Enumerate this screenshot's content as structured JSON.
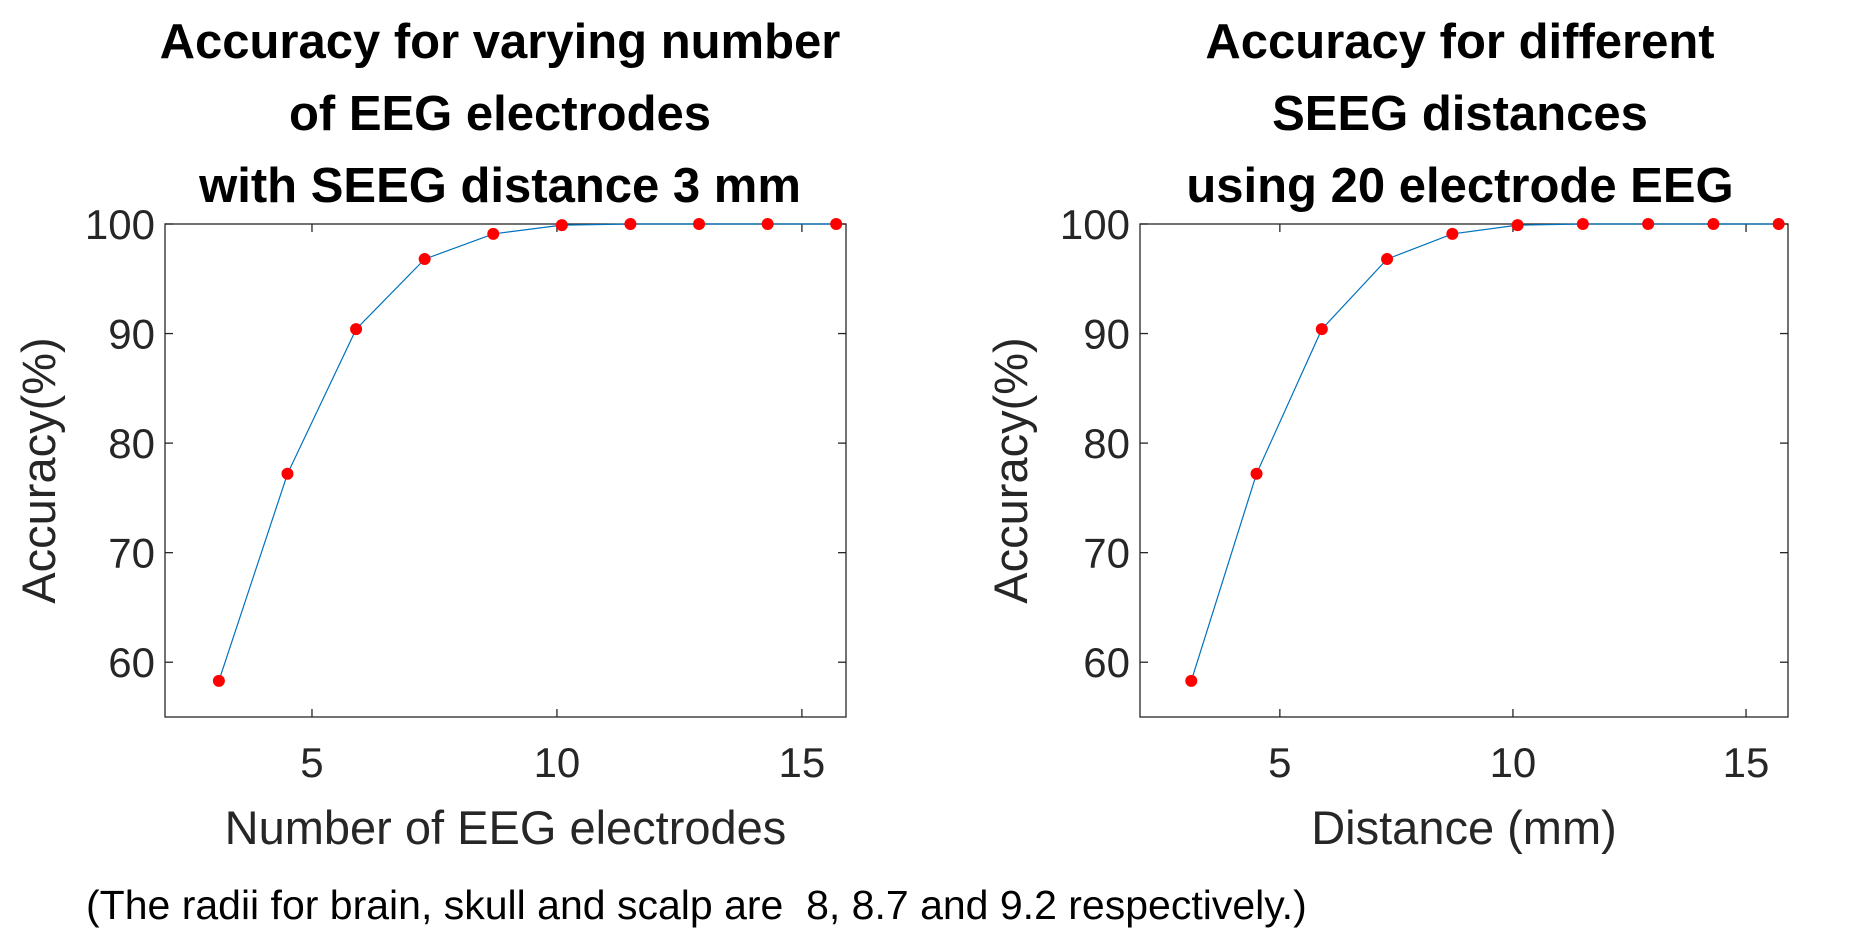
{
  "chart_data": [
    {
      "type": "line",
      "title_lines": [
        "Accuracy for varying number",
        "of EEG electrodes",
        "with SEEG distance 3 mm"
      ],
      "xlabel": "Number of EEG electrodes",
      "ylabel": "Accuracy(%)",
      "xlim": [
        2,
        15.9
      ],
      "ylim": [
        55,
        100
      ],
      "xticks": [
        5,
        10,
        15
      ],
      "yticks": [
        60,
        70,
        80,
        90,
        100
      ],
      "x": [
        3.1,
        4.5,
        5.9,
        7.3,
        8.7,
        10.1,
        11.5,
        12.9,
        14.3,
        15.7
      ],
      "series": [
        {
          "values": [
            58.3,
            77.2,
            90.4,
            96.8,
            99.1,
            99.9,
            100,
            100,
            100,
            100
          ]
        }
      ],
      "line_color": "#0072bd",
      "marker_color": "#ff0000",
      "grid": false,
      "box": true
    },
    {
      "type": "line",
      "title_lines": [
        "Accuracy for different",
        "SEEG distances",
        "using 20 electrode EEG"
      ],
      "xlabel": "Distance (mm)",
      "ylabel": "Accuracy(%)",
      "xlim": [
        2,
        15.9
      ],
      "ylim": [
        55,
        100
      ],
      "xticks": [
        5,
        10,
        15
      ],
      "yticks": [
        60,
        70,
        80,
        90,
        100
      ],
      "x": [
        3.1,
        4.5,
        5.9,
        7.3,
        8.7,
        10.1,
        11.5,
        12.9,
        14.3,
        15.7
      ],
      "series": [
        {
          "values": [
            58.3,
            77.2,
            90.4,
            96.8,
            99.1,
            99.9,
            100,
            100,
            100,
            100
          ]
        }
      ],
      "line_color": "#0072bd",
      "marker_color": "#ff0000",
      "grid": false,
      "box": true
    }
  ],
  "caption": "(The radii for brain, skull and scalp are  8, 8.7 and 9.2 respectively.)"
}
